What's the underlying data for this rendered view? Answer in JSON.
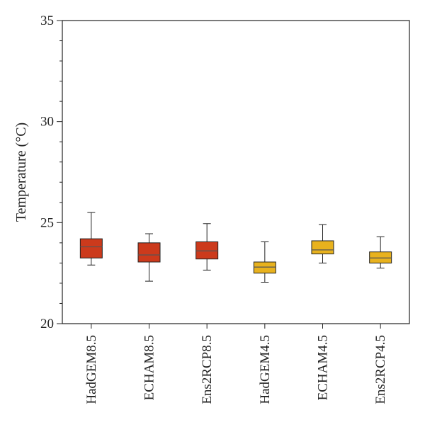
{
  "chart_data": {
    "type": "box",
    "ylabel": "Temperature (°C)",
    "xlabel": "",
    "ylim": [
      20,
      35
    ],
    "yticks": [
      "20",
      "25",
      "30",
      "35"
    ],
    "minor_tick_step": 1,
    "grid": false,
    "categories": [
      "HadGEM8.5",
      "ECHAM8.5",
      "Ens2RCP8.5",
      "HadGEM4.5",
      "ECHAM4.5",
      "Ens2RCP4.5"
    ],
    "boxes": [
      {
        "name": "HadGEM8.5",
        "whisker_low": 22.9,
        "q1": 23.25,
        "median": 23.8,
        "q3": 24.2,
        "whisker_high": 25.5,
        "color": "#cc3a1c"
      },
      {
        "name": "ECHAM8.5",
        "whisker_low": 22.1,
        "q1": 23.05,
        "median": 23.4,
        "q3": 24.0,
        "whisker_high": 24.45,
        "color": "#cc3a1c"
      },
      {
        "name": "Ens2RCP8.5",
        "whisker_low": 22.65,
        "q1": 23.2,
        "median": 23.6,
        "q3": 24.05,
        "whisker_high": 24.95,
        "color": "#cc3a1c"
      },
      {
        "name": "HadGEM4.5",
        "whisker_low": 22.05,
        "q1": 22.5,
        "median": 22.8,
        "q3": 23.05,
        "whisker_high": 24.05,
        "color": "#e8b21e"
      },
      {
        "name": "ECHAM4.5",
        "whisker_low": 23.0,
        "q1": 23.45,
        "median": 23.65,
        "q3": 24.1,
        "whisker_high": 24.9,
        "color": "#e8b21e"
      },
      {
        "name": "Ens2RCP4.5",
        "whisker_low": 22.75,
        "q1": 23.0,
        "median": 23.25,
        "q3": 23.55,
        "whisker_high": 24.3,
        "color": "#e8b21e"
      }
    ]
  }
}
